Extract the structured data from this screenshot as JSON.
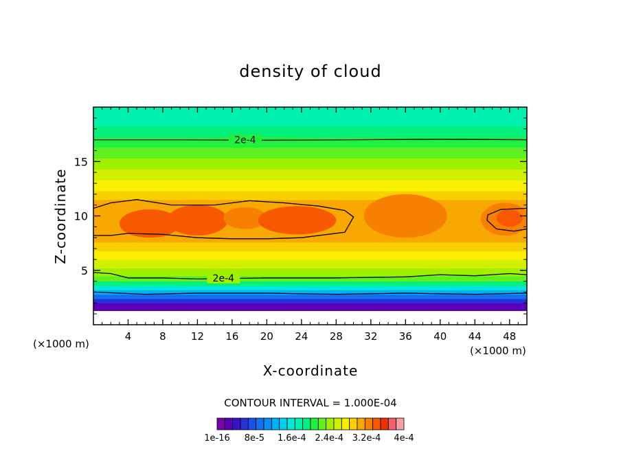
{
  "chart_data": {
    "type": "heatmap",
    "title": "density of cloud",
    "xlabel": "X-coordinate",
    "ylabel": "Z-coordinate",
    "x_unit_label": "(×1000 m)",
    "y_unit_label": "(×1000 m)",
    "xlim": [
      0,
      50
    ],
    "ylim": [
      0,
      20
    ],
    "x_ticks": [
      4,
      8,
      12,
      16,
      20,
      24,
      28,
      32,
      36,
      40,
      44,
      48
    ],
    "y_ticks": [
      5,
      10,
      15
    ],
    "contour_interval_text": "CONTOUR INTERVAL = 1.000E-04",
    "contour_labels": [
      {
        "text": "2e-4",
        "x": 17.5,
        "z": 17.0
      },
      {
        "text": "2e-4",
        "x": 15.0,
        "z": 4.3
      }
    ],
    "colorbar": {
      "levels": 24,
      "tick_labels": [
        "1e-16",
        "8e-5",
        "1.6e-4",
        "2.4e-4",
        "3.2e-4",
        "4e-4"
      ],
      "colors": [
        "#7a00a8",
        "#5a00b8",
        "#3a10c8",
        "#2a30d8",
        "#1a50e8",
        "#1070f0",
        "#0890f8",
        "#00b0f8",
        "#00d0f0",
        "#00e8d8",
        "#00f0b0",
        "#00f080",
        "#20f040",
        "#60f020",
        "#a0f000",
        "#d0f000",
        "#f8f000",
        "#f8d000",
        "#f8a800",
        "#f88000",
        "#f85800",
        "#f03000",
        "#f06070",
        "#f8a0a0"
      ]
    },
    "bands": [
      {
        "z0": 0.0,
        "z1": 1.3,
        "level": -1
      },
      {
        "z0": 1.3,
        "z1": 2.0,
        "level": 1
      },
      {
        "z0": 2.0,
        "z1": 2.4,
        "level": 3
      },
      {
        "z0": 2.4,
        "z1": 2.8,
        "level": 5
      },
      {
        "z0": 2.8,
        "z1": 3.2,
        "level": 7
      },
      {
        "z0": 3.2,
        "z1": 3.6,
        "level": 9
      },
      {
        "z0": 3.6,
        "z1": 4.0,
        "level": 11
      },
      {
        "z0": 4.0,
        "z1": 4.5,
        "level": 13
      },
      {
        "z0": 4.5,
        "z1": 5.2,
        "level": 14
      },
      {
        "z0": 5.2,
        "z1": 6.0,
        "level": 15
      },
      {
        "z0": 6.0,
        "z1": 6.8,
        "level": 16
      },
      {
        "z0": 6.8,
        "z1": 7.6,
        "level": 17
      },
      {
        "z0": 7.6,
        "z1": 8.3,
        "level": 18
      },
      {
        "z0": 8.3,
        "z1": 11.5,
        "level": 18
      },
      {
        "z0": 11.5,
        "z1": 12.3,
        "level": 17
      },
      {
        "z0": 12.3,
        "z1": 13.3,
        "level": 16
      },
      {
        "z0": 13.3,
        "z1": 14.3,
        "level": 15
      },
      {
        "z0": 14.3,
        "z1": 15.3,
        "level": 14
      },
      {
        "z0": 15.3,
        "z1": 16.3,
        "level": 13
      },
      {
        "z0": 16.3,
        "z1": 17.3,
        "level": 12
      },
      {
        "z0": 17.3,
        "z1": 18.3,
        "level": 11
      },
      {
        "z0": 18.3,
        "z1": 20.0,
        "level": 10
      }
    ],
    "cloud_cores": [
      {
        "x": 6.5,
        "z": 9.3,
        "rx": 3.5,
        "rz": 1.3,
        "level": 20
      },
      {
        "x": 12.0,
        "z": 9.6,
        "rx": 3.5,
        "rz": 1.4,
        "level": 20
      },
      {
        "x": 17.5,
        "z": 9.8,
        "rx": 2.5,
        "rz": 1.0,
        "level": 19
      },
      {
        "x": 23.5,
        "z": 9.6,
        "rx": 4.5,
        "rz": 1.3,
        "level": 20
      },
      {
        "x": 36.0,
        "z": 10.0,
        "rx": 4.8,
        "rz": 2.0,
        "level": 19
      },
      {
        "x": 47.5,
        "z": 9.7,
        "rx": 2.8,
        "rz": 1.5,
        "level": 19
      },
      {
        "x": 48.0,
        "z": 9.8,
        "rx": 1.5,
        "rz": 0.8,
        "level": 20
      }
    ],
    "contour_lines": [
      {
        "points": [
          [
            0,
            17.0
          ],
          [
            10,
            17.0
          ],
          [
            20,
            16.95
          ],
          [
            30,
            17.0
          ],
          [
            40,
            17.05
          ],
          [
            50,
            17.0
          ]
        ]
      },
      {
        "points": [
          [
            0,
            4.8
          ],
          [
            2,
            4.7
          ],
          [
            4,
            4.3
          ],
          [
            8,
            4.3
          ],
          [
            12,
            4.2
          ],
          [
            20,
            4.3
          ],
          [
            28,
            4.3
          ],
          [
            36,
            4.4
          ],
          [
            40,
            4.6
          ],
          [
            44,
            4.5
          ],
          [
            48,
            4.7
          ],
          [
            50,
            4.6
          ]
        ]
      },
      {
        "points": [
          [
            0,
            10.7
          ],
          [
            2,
            11.2
          ],
          [
            5,
            11.5
          ],
          [
            9,
            11.0
          ],
          [
            14,
            11.0
          ],
          [
            18,
            11.4
          ],
          [
            22,
            11.2
          ],
          [
            26,
            10.9
          ],
          [
            29,
            10.5
          ],
          [
            30,
            9.9
          ],
          [
            29,
            8.5
          ],
          [
            24,
            8.0
          ],
          [
            20,
            7.9
          ],
          [
            16,
            7.9
          ],
          [
            12,
            8.0
          ],
          [
            8,
            8.3
          ],
          [
            4,
            8.4
          ],
          [
            2,
            8.2
          ],
          [
            0,
            8.2
          ]
        ]
      },
      {
        "points": [
          [
            50,
            10.7
          ],
          [
            47,
            10.6
          ],
          [
            45.5,
            10.1
          ],
          [
            45.4,
            9.6
          ],
          [
            46.5,
            8.8
          ],
          [
            48.5,
            8.6
          ],
          [
            50,
            8.8
          ]
        ]
      },
      {
        "points": [
          [
            0,
            3.0
          ],
          [
            6,
            2.8
          ],
          [
            12,
            2.9
          ],
          [
            20,
            2.9
          ],
          [
            28,
            2.8
          ],
          [
            36,
            2.9
          ],
          [
            44,
            2.8
          ],
          [
            50,
            2.9
          ]
        ]
      }
    ]
  }
}
